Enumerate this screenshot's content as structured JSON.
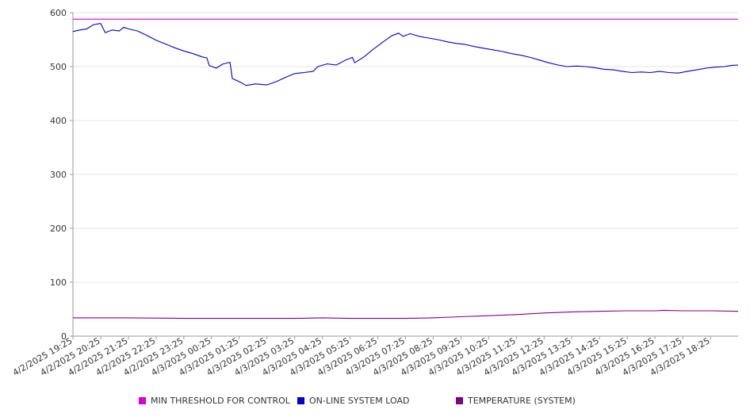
{
  "chart_data": {
    "type": "line",
    "title": "",
    "xlabel": "",
    "ylabel": "",
    "ylim": [
      0,
      600
    ],
    "y_ticks": [
      0,
      100,
      200,
      300,
      400,
      500,
      600
    ],
    "grid": true,
    "legend_position": "bottom",
    "x_tick_labels": [
      "4/2/2025 19:25",
      "4/2/2025 20:25",
      "4/2/2025 21:25",
      "4/2/2025 22:25",
      "4/2/2025 23:25",
      "4/3/2025 00:25",
      "4/3/2025 01:25",
      "4/3/2025 02:25",
      "4/3/2025 03:25",
      "4/3/2025 04:25",
      "4/3/2025 05:25",
      "4/3/2025 06:25",
      "4/3/2025 07:25",
      "4/3/2025 08:25",
      "4/3/2025 09:25",
      "4/3/2025 10:25",
      "4/3/2025 11:25",
      "4/3/2025 12:25",
      "4/3/2025 13:25",
      "4/3/2025 14:25",
      "4/3/2025 15:25",
      "4/3/2025 16:25",
      "4/3/2025 17:25",
      "4/3/2025 18:25"
    ],
    "series": [
      {
        "name": "MIN THRESHOLD FOR CONTROL",
        "color": "#d400d4",
        "points": [
          [
            "4/2/2025 19:25",
            588
          ],
          [
            "4/3/2025 19:25",
            588
          ]
        ]
      },
      {
        "name": "ON-LINE SYSTEM LOAD",
        "color": "#0000cc",
        "points": [
          [
            "4/2/2025 19:25",
            565
          ],
          [
            "4/2/2025 19:40",
            568
          ],
          [
            "4/2/2025 19:55",
            570
          ],
          [
            "4/2/2025 20:10",
            578
          ],
          [
            "4/2/2025 20:25",
            580
          ],
          [
            "4/2/2025 20:35",
            563
          ],
          [
            "4/2/2025 20:50",
            568
          ],
          [
            "4/2/2025 21:05",
            566
          ],
          [
            "4/2/2025 21:15",
            573
          ],
          [
            "4/2/2025 21:25",
            570
          ],
          [
            "4/2/2025 21:45",
            566
          ],
          [
            "4/2/2025 22:05",
            558
          ],
          [
            "4/2/2025 22:25",
            549
          ],
          [
            "4/2/2025 22:45",
            542
          ],
          [
            "4/2/2025 23:05",
            535
          ],
          [
            "4/2/2025 23:25",
            529
          ],
          [
            "4/2/2025 23:45",
            524
          ],
          [
            "4/3/2025 00:05",
            518
          ],
          [
            "4/3/2025 00:15",
            516
          ],
          [
            "4/3/2025 00:20",
            502
          ],
          [
            "4/3/2025 00:35",
            497
          ],
          [
            "4/3/2025 00:50",
            505
          ],
          [
            "4/3/2025 01:05",
            508
          ],
          [
            "4/3/2025 01:10",
            478
          ],
          [
            "4/3/2025 01:25",
            472
          ],
          [
            "4/3/2025 01:40",
            465
          ],
          [
            "4/3/2025 02:00",
            468
          ],
          [
            "4/3/2025 02:25",
            466
          ],
          [
            "4/3/2025 02:45",
            472
          ],
          [
            "4/3/2025 03:05",
            480
          ],
          [
            "4/3/2025 03:25",
            487
          ],
          [
            "4/3/2025 03:45",
            489
          ],
          [
            "4/3/2025 04:05",
            491
          ],
          [
            "4/3/2025 04:15",
            500
          ],
          [
            "4/3/2025 04:35",
            505
          ],
          [
            "4/3/2025 04:55",
            503
          ],
          [
            "4/3/2025 05:15",
            512
          ],
          [
            "4/3/2025 05:30",
            517
          ],
          [
            "4/3/2025 05:35",
            507
          ],
          [
            "4/3/2025 05:55",
            518
          ],
          [
            "4/3/2025 06:15",
            532
          ],
          [
            "4/3/2025 06:35",
            545
          ],
          [
            "4/3/2025 06:55",
            557
          ],
          [
            "4/3/2025 07:10",
            562
          ],
          [
            "4/3/2025 07:20",
            556
          ],
          [
            "4/3/2025 07:35",
            561
          ],
          [
            "4/3/2025 07:55",
            556
          ],
          [
            "4/3/2025 08:15",
            553
          ],
          [
            "4/3/2025 08:35",
            550
          ],
          [
            "4/3/2025 08:55",
            546
          ],
          [
            "4/3/2025 09:15",
            543
          ],
          [
            "4/3/2025 09:35",
            541
          ],
          [
            "4/3/2025 09:55",
            537
          ],
          [
            "4/3/2025 10:15",
            534
          ],
          [
            "4/3/2025 10:35",
            531
          ],
          [
            "4/3/2025 10:55",
            528
          ],
          [
            "4/3/2025 11:15",
            524
          ],
          [
            "4/3/2025 11:35",
            521
          ],
          [
            "4/3/2025 11:55",
            517
          ],
          [
            "4/3/2025 12:15",
            512
          ],
          [
            "4/3/2025 12:35",
            507
          ],
          [
            "4/3/2025 12:55",
            503
          ],
          [
            "4/3/2025 13:15",
            500
          ],
          [
            "4/3/2025 13:35",
            501
          ],
          [
            "4/3/2025 13:55",
            500
          ],
          [
            "4/3/2025 14:15",
            498
          ],
          [
            "4/3/2025 14:35",
            495
          ],
          [
            "4/3/2025 14:55",
            494
          ],
          [
            "4/3/2025 15:15",
            491
          ],
          [
            "4/3/2025 15:35",
            489
          ],
          [
            "4/3/2025 15:55",
            490
          ],
          [
            "4/3/2025 16:15",
            489
          ],
          [
            "4/3/2025 16:35",
            491
          ],
          [
            "4/3/2025 16:55",
            489
          ],
          [
            "4/3/2025 17:15",
            488
          ],
          [
            "4/3/2025 17:35",
            491
          ],
          [
            "4/3/2025 17:55",
            494
          ],
          [
            "4/3/2025 18:15",
            497
          ],
          [
            "4/3/2025 18:35",
            499
          ],
          [
            "4/3/2025 18:55",
            500
          ],
          [
            "4/3/2025 19:10",
            502
          ],
          [
            "4/3/2025 19:25",
            503
          ]
        ]
      },
      {
        "name": "TEMPERATURE (SYSTEM)",
        "color": "#800080",
        "points": [
          [
            "4/2/2025 19:25",
            34
          ],
          [
            "4/2/2025 21:25",
            34
          ],
          [
            "4/2/2025 23:25",
            33
          ],
          [
            "4/3/2025 01:25",
            33
          ],
          [
            "4/3/2025 03:25",
            33
          ],
          [
            "4/3/2025 04:25",
            34
          ],
          [
            "4/3/2025 05:25",
            33
          ],
          [
            "4/3/2025 07:25",
            33
          ],
          [
            "4/3/2025 08:25",
            34
          ],
          [
            "4/3/2025 09:25",
            36
          ],
          [
            "4/3/2025 10:25",
            38
          ],
          [
            "4/3/2025 11:25",
            40
          ],
          [
            "4/3/2025 12:25",
            43
          ],
          [
            "4/3/2025 13:25",
            45
          ],
          [
            "4/3/2025 14:25",
            46
          ],
          [
            "4/3/2025 15:25",
            47
          ],
          [
            "4/3/2025 16:25",
            47
          ],
          [
            "4/3/2025 16:45",
            48
          ],
          [
            "4/3/2025 17:25",
            47
          ],
          [
            "4/3/2025 18:25",
            47
          ],
          [
            "4/3/2025 19:25",
            46
          ]
        ]
      }
    ]
  }
}
